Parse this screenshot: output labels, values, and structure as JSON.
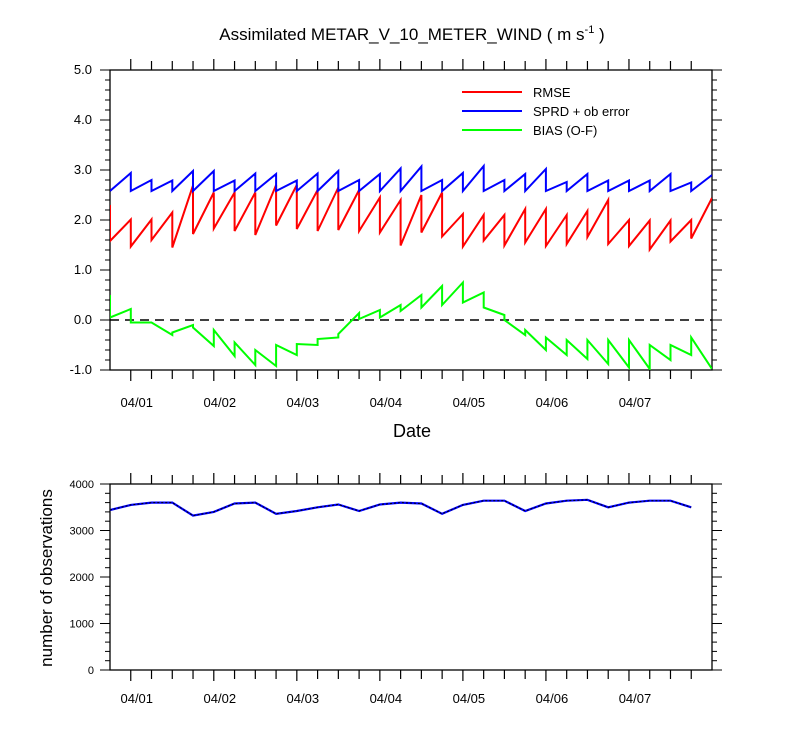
{
  "chart_data": [
    {
      "type": "line",
      "title": "Assimilated METAR_V_10_METER_WIND ( m s",
      "title_units_sup": "-1",
      "title_close": " )",
      "xlabel": "Date",
      "ylabel": "",
      "x_tick_labels": [
        "04/01",
        "04/02",
        "04/03",
        "04/04",
        "04/05",
        "04/06",
        "04/07"
      ],
      "xlim": [
        0,
        174
      ],
      "ylim": [
        -1.0,
        5.0
      ],
      "y_tick_labels": [
        "-1.0",
        "0.0",
        "1.0",
        "2.0",
        "3.0",
        "4.0",
        "5.0"
      ],
      "y_ticks": [
        -1.0,
        0.0,
        1.0,
        2.0,
        3.0,
        4.0,
        5.0
      ],
      "zero_reference_line": true,
      "grid": false,
      "legend_position": "top-right",
      "series": [
        {
          "name": "RMSE",
          "color": "#ff0000",
          "values": [
            [
              0,
              2.3
            ],
            [
              0,
              1.58
            ],
            [
              6,
              2.01
            ],
            [
              6,
              1.47
            ],
            [
              12,
              2.01
            ],
            [
              12,
              1.6
            ],
            [
              18,
              2.15
            ],
            [
              18,
              1.45
            ],
            [
              24,
              2.69
            ],
            [
              24,
              1.72
            ],
            [
              30,
              2.55
            ],
            [
              30,
              1.83
            ],
            [
              36,
              2.55
            ],
            [
              36,
              1.78
            ],
            [
              42,
              2.55
            ],
            [
              42,
              1.7
            ],
            [
              48,
              2.7
            ],
            [
              48,
              1.89
            ],
            [
              54,
              2.7
            ],
            [
              54,
              1.82
            ],
            [
              60,
              2.6
            ],
            [
              60,
              1.78
            ],
            [
              66,
              2.65
            ],
            [
              66,
              1.8
            ],
            [
              72,
              2.6
            ],
            [
              72,
              1.78
            ],
            [
              78,
              2.45
            ],
            [
              78,
              1.75
            ],
            [
              84,
              2.4
            ],
            [
              84,
              1.49
            ],
            [
              90,
              2.5
            ],
            [
              90,
              1.75
            ],
            [
              96,
              2.55
            ],
            [
              96,
              1.67
            ],
            [
              102,
              2.12
            ],
            [
              102,
              1.47
            ],
            [
              108,
              2.1
            ],
            [
              108,
              1.59
            ],
            [
              114,
              2.1
            ],
            [
              114,
              1.49
            ],
            [
              120,
              2.22
            ],
            [
              120,
              1.55
            ],
            [
              126,
              2.22
            ],
            [
              126,
              1.48
            ],
            [
              132,
              2.1
            ],
            [
              132,
              1.52
            ],
            [
              138,
              2.18
            ],
            [
              138,
              1.66
            ],
            [
              144,
              2.4
            ],
            [
              144,
              1.52
            ],
            [
              150,
              2.0
            ],
            [
              150,
              1.48
            ],
            [
              156,
              1.99
            ],
            [
              156,
              1.41
            ],
            [
              162,
              1.99
            ],
            [
              162,
              1.57
            ],
            [
              168,
              2.0
            ],
            [
              168,
              1.63
            ],
            [
              174,
              2.44
            ]
          ]
        },
        {
          "name": "SPRD + ob error",
          "color": "#0000ff",
          "values": [
            [
              0,
              2.58
            ],
            [
              6,
              2.94
            ],
            [
              6,
              2.58
            ],
            [
              12,
              2.8
            ],
            [
              12,
              2.58
            ],
            [
              18,
              2.79
            ],
            [
              18,
              2.58
            ],
            [
              24,
              2.98
            ],
            [
              24,
              2.58
            ],
            [
              30,
              2.98
            ],
            [
              30,
              2.58
            ],
            [
              36,
              2.79
            ],
            [
              36,
              2.58
            ],
            [
              42,
              2.93
            ],
            [
              42,
              2.58
            ],
            [
              48,
              2.92
            ],
            [
              48,
              2.58
            ],
            [
              54,
              2.79
            ],
            [
              54,
              2.58
            ],
            [
              60,
              2.93
            ],
            [
              60,
              2.58
            ],
            [
              66,
              2.98
            ],
            [
              66,
              2.58
            ],
            [
              72,
              2.8
            ],
            [
              72,
              2.58
            ],
            [
              78,
              2.92
            ],
            [
              78,
              2.58
            ],
            [
              84,
              3.03
            ],
            [
              84,
              2.58
            ],
            [
              90,
              3.07
            ],
            [
              90,
              2.58
            ],
            [
              96,
              2.8
            ],
            [
              96,
              2.58
            ],
            [
              102,
              2.94
            ],
            [
              102,
              2.58
            ],
            [
              108,
              3.08
            ],
            [
              108,
              2.58
            ],
            [
              114,
              2.8
            ],
            [
              114,
              2.58
            ],
            [
              120,
              2.92
            ],
            [
              120,
              2.58
            ],
            [
              126,
              3.02
            ],
            [
              126,
              2.58
            ],
            [
              132,
              2.76
            ],
            [
              132,
              2.58
            ],
            [
              138,
              2.92
            ],
            [
              138,
              2.58
            ],
            [
              144,
              2.79
            ],
            [
              144,
              2.58
            ],
            [
              150,
              2.79
            ],
            [
              150,
              2.58
            ],
            [
              156,
              2.79
            ],
            [
              156,
              2.58
            ],
            [
              162,
              2.92
            ],
            [
              162,
              2.58
            ],
            [
              168,
              2.75
            ],
            [
              168,
              2.58
            ],
            [
              174,
              2.9
            ]
          ]
        },
        {
          "name": "BIAS (O-F)",
          "color": "#00ff00",
          "values": [
            [
              0,
              0.5
            ],
            [
              0,
              0.05
            ],
            [
              6,
              0.22
            ],
            [
              6,
              -0.05
            ],
            [
              12,
              -0.05
            ],
            [
              18,
              -0.3
            ],
            [
              18,
              -0.25
            ],
            [
              24,
              -0.1
            ],
            [
              24,
              -0.15
            ],
            [
              30,
              -0.52
            ],
            [
              30,
              -0.2
            ],
            [
              36,
              -0.72
            ],
            [
              36,
              -0.45
            ],
            [
              42,
              -0.9
            ],
            [
              42,
              -0.6
            ],
            [
              48,
              -0.92
            ],
            [
              48,
              -0.5
            ],
            [
              54,
              -0.7
            ],
            [
              54,
              -0.48
            ],
            [
              60,
              -0.5
            ],
            [
              60,
              -0.38
            ],
            [
              66,
              -0.35
            ],
            [
              66,
              -0.28
            ],
            [
              72,
              0.14
            ],
            [
              72,
              0.02
            ],
            [
              78,
              0.2
            ],
            [
              78,
              0.05
            ],
            [
              84,
              0.3
            ],
            [
              84,
              0.18
            ],
            [
              90,
              0.5
            ],
            [
              90,
              0.25
            ],
            [
              96,
              0.68
            ],
            [
              96,
              0.3
            ],
            [
              102,
              0.75
            ],
            [
              102,
              0.35
            ],
            [
              108,
              0.55
            ],
            [
              108,
              0.25
            ],
            [
              114,
              0.1
            ],
            [
              114,
              0.0
            ],
            [
              120,
              -0.3
            ],
            [
              120,
              -0.2
            ],
            [
              126,
              -0.6
            ],
            [
              126,
              -0.35
            ],
            [
              132,
              -0.7
            ],
            [
              132,
              -0.4
            ],
            [
              138,
              -0.78
            ],
            [
              138,
              -0.4
            ],
            [
              144,
              -0.88
            ],
            [
              144,
              -0.4
            ],
            [
              150,
              -0.95
            ],
            [
              150,
              -0.4
            ],
            [
              156,
              -0.98
            ],
            [
              156,
              -0.5
            ],
            [
              162,
              -0.8
            ],
            [
              162,
              -0.5
            ],
            [
              168,
              -0.7
            ],
            [
              168,
              -0.35
            ],
            [
              174,
              -0.98
            ]
          ]
        }
      ]
    },
    {
      "type": "line",
      "title": "",
      "xlabel": "",
      "ylabel": "number of observations",
      "x_tick_labels": [
        "04/01",
        "04/02",
        "04/03",
        "04/04",
        "04/05",
        "04/06",
        "04/07"
      ],
      "xlim": [
        0,
        174
      ],
      "ylim": [
        0,
        4000
      ],
      "y_tick_labels": [
        "0",
        "1000",
        "2000",
        "3000",
        "4000"
      ],
      "y_ticks": [
        0,
        1000,
        2000,
        3000,
        4000
      ],
      "grid": false,
      "series": [
        {
          "color": "#0000ff",
          "values": [
            [
              0,
              3440
            ],
            [
              6,
              3550
            ],
            [
              12,
              3600
            ],
            [
              18,
              3600
            ],
            [
              24,
              3320
            ],
            [
              30,
              3400
            ],
            [
              36,
              3580
            ],
            [
              42,
              3600
            ],
            [
              48,
              3360
            ],
            [
              54,
              3420
            ],
            [
              60,
              3500
            ],
            [
              66,
              3560
            ],
            [
              72,
              3420
            ],
            [
              78,
              3560
            ],
            [
              84,
              3600
            ],
            [
              90,
              3580
            ],
            [
              96,
              3360
            ],
            [
              102,
              3550
            ],
            [
              108,
              3640
            ],
            [
              114,
              3640
            ],
            [
              120,
              3420
            ],
            [
              126,
              3580
            ],
            [
              132,
              3640
            ],
            [
              138,
              3660
            ],
            [
              144,
              3500
            ],
            [
              150,
              3600
            ],
            [
              156,
              3640
            ],
            [
              162,
              3640
            ],
            [
              168,
              3500
            ]
          ]
        },
        {
          "color": "#000000",
          "values": [
            [
              0,
              3440
            ],
            [
              6,
              3550
            ],
            [
              12,
              3600
            ],
            [
              18,
              3600
            ],
            [
              24,
              3320
            ],
            [
              30,
              3400
            ],
            [
              36,
              3580
            ],
            [
              42,
              3600
            ],
            [
              48,
              3360
            ],
            [
              54,
              3420
            ],
            [
              60,
              3500
            ],
            [
              66,
              3560
            ],
            [
              72,
              3420
            ],
            [
              78,
              3560
            ],
            [
              84,
              3600
            ],
            [
              90,
              3580
            ],
            [
              96,
              3360
            ],
            [
              102,
              3550
            ],
            [
              108,
              3640
            ],
            [
              114,
              3640
            ],
            [
              120,
              3420
            ],
            [
              126,
              3580
            ],
            [
              132,
              3640
            ],
            [
              138,
              3660
            ],
            [
              144,
              3500
            ],
            [
              150,
              3600
            ],
            [
              156,
              3640
            ],
            [
              162,
              3640
            ],
            [
              168,
              3500
            ]
          ]
        }
      ]
    }
  ]
}
